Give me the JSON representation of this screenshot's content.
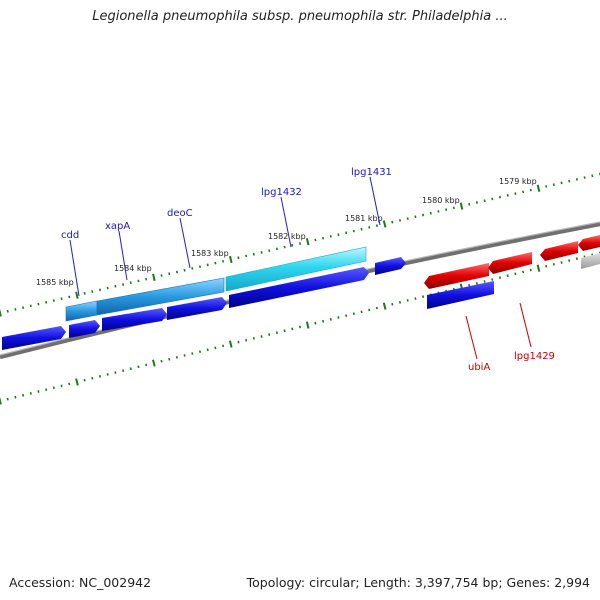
{
  "title": "Legionella pneumophila subsp. pneumophila str. Philadelphia ...",
  "footer": {
    "accession": "Accession: NC_002942",
    "stats": "Topology: circular; Length: 3,397,754 bp; Genes: 2,994"
  },
  "colors": {
    "forward_gene": "#1010e0",
    "reverse_gene": "#e00000",
    "highlight_gene": "#29c9e6",
    "backbone": "#808080",
    "tick": "#1a7a1a",
    "label_forward": "#1a1ab0",
    "label_reverse": "#cc0000"
  },
  "scale_labels": [
    "1585 kbp",
    "1584 kbp",
    "1583 kbp",
    "1582 kbp",
    "1581 kbp",
    "1580 kbp",
    "1579 kbp"
  ],
  "gene_labels": [
    "cdd",
    "xapA",
    "deoC",
    "lpg1432",
    "lpg1431",
    "ubiA",
    "lpg1429"
  ]
}
